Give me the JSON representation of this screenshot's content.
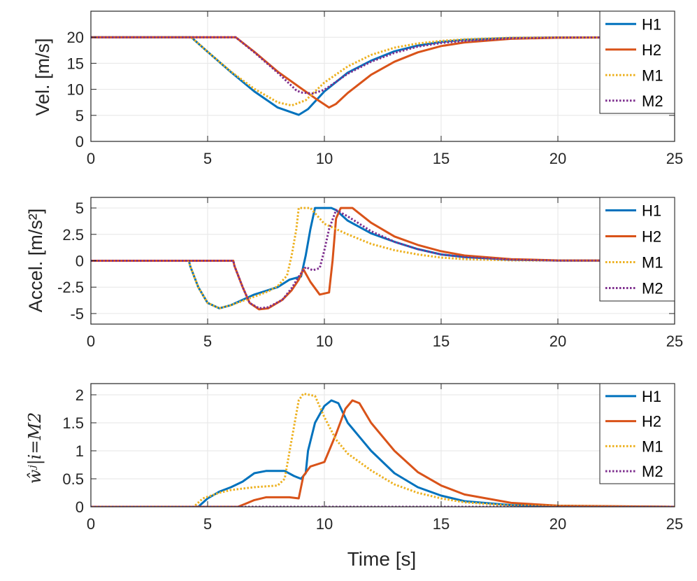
{
  "colors": {
    "H1": "#0072BD",
    "H2": "#D95319",
    "M1": "#EDB120",
    "M2": "#7E2F8E",
    "grid": "#e6e6e6",
    "axis": "#262626"
  },
  "xlabel": "Time [s]",
  "chart_data": [
    {
      "type": "line",
      "title": "",
      "xlabel": "",
      "ylabel": "Vel. [m/s]",
      "xlim": [
        0,
        25
      ],
      "ylim": [
        0,
        25
      ],
      "xticks": [
        0,
        5,
        10,
        15,
        20,
        25
      ],
      "yticks": [
        0,
        5,
        10,
        15,
        20
      ],
      "ytick_labels": [
        "0",
        "5",
        "10",
        "15",
        "20"
      ],
      "legend": [
        "H1",
        "H2",
        "M1",
        "M2"
      ],
      "series": [
        {
          "name": "H1",
          "style": "solid",
          "points": [
            [
              0,
              20
            ],
            [
              4.3,
              20
            ],
            [
              5,
              17.2
            ],
            [
              6,
              13.3
            ],
            [
              7,
              9.6
            ],
            [
              8,
              6.5
            ],
            [
              8.9,
              5.1
            ],
            [
              9.3,
              6.2
            ],
            [
              10,
              9.6
            ],
            [
              11,
              13.2
            ],
            [
              12,
              15.5
            ],
            [
              13,
              17.3
            ],
            [
              14,
              18.4
            ],
            [
              15,
              19.1
            ],
            [
              16,
              19.5
            ],
            [
              18,
              19.85
            ],
            [
              20,
              19.95
            ],
            [
              25,
              20
            ]
          ]
        },
        {
          "name": "H2",
          "style": "solid",
          "points": [
            [
              0,
              20
            ],
            [
              6.2,
              20
            ],
            [
              7,
              17.2
            ],
            [
              8,
              13.4
            ],
            [
              9,
              10.2
            ],
            [
              9.6,
              8.3
            ],
            [
              10.2,
              6.5
            ],
            [
              10.5,
              7.2
            ],
            [
              11,
              9.3
            ],
            [
              12,
              12.8
            ],
            [
              13,
              15.3
            ],
            [
              14,
              17.1
            ],
            [
              15,
              18.3
            ],
            [
              16,
              19
            ],
            [
              18,
              19.7
            ],
            [
              20,
              19.9
            ],
            [
              25,
              20
            ]
          ]
        },
        {
          "name": "M1",
          "style": "dotted",
          "points": [
            [
              0,
              20
            ],
            [
              4.3,
              20
            ],
            [
              5,
              17.2
            ],
            [
              6,
              13.4
            ],
            [
              7,
              10.1
            ],
            [
              8,
              7.5
            ],
            [
              8.6,
              6.9
            ],
            [
              9.2,
              7.9
            ],
            [
              10,
              11.3
            ],
            [
              11,
              14.4
            ],
            [
              12,
              16.6
            ],
            [
              13,
              18
            ],
            [
              14,
              18.8
            ],
            [
              15,
              19.3
            ],
            [
              16,
              19.6
            ],
            [
              18,
              19.9
            ],
            [
              20,
              19.97
            ],
            [
              25,
              20
            ]
          ]
        },
        {
          "name": "M2",
          "style": "dotted",
          "points": [
            [
              0,
              20
            ],
            [
              6.2,
              20
            ],
            [
              7,
              17.1
            ],
            [
              8,
              13.2
            ],
            [
              8.8,
              9.8
            ],
            [
              9,
              9.4
            ],
            [
              9.5,
              9.2
            ],
            [
              10,
              9.9
            ],
            [
              11,
              13
            ],
            [
              12,
              15.3
            ],
            [
              13,
              17
            ],
            [
              14,
              18.2
            ],
            [
              15,
              18.9
            ],
            [
              16,
              19.3
            ],
            [
              18,
              19.8
            ],
            [
              20,
              19.95
            ],
            [
              25,
              20
            ]
          ]
        }
      ]
    },
    {
      "type": "line",
      "title": "",
      "xlabel": "",
      "ylabel": "Accel. [m/s²]",
      "xlim": [
        0,
        25
      ],
      "ylim": [
        -6,
        6
      ],
      "xticks": [
        0,
        5,
        10,
        15,
        20,
        25
      ],
      "yticks": [
        -5,
        -2.5,
        0,
        2.5,
        5
      ],
      "ytick_labels": [
        "-5",
        "-2.5",
        "0",
        "2.5",
        "5"
      ],
      "legend": [
        "H1",
        "H2",
        "M1",
        "M2"
      ],
      "series": [
        {
          "name": "H1",
          "style": "solid",
          "points": [
            [
              0,
              0
            ],
            [
              4.2,
              0
            ],
            [
              4.25,
              -0.5
            ],
            [
              4.6,
              -2.5
            ],
            [
              5,
              -4
            ],
            [
              5.5,
              -4.5
            ],
            [
              6,
              -4.2
            ],
            [
              7,
              -3.2
            ],
            [
              8,
              -2.5
            ],
            [
              8.5,
              -1.8
            ],
            [
              9,
              -1.5
            ],
            [
              9.2,
              0.5
            ],
            [
              9.4,
              3
            ],
            [
              9.6,
              5
            ],
            [
              10.3,
              5
            ],
            [
              10.5,
              4.8
            ],
            [
              11,
              3.8
            ],
            [
              12,
              2.6
            ],
            [
              13,
              1.8
            ],
            [
              14,
              1.1
            ],
            [
              15,
              0.6
            ],
            [
              16,
              0.35
            ],
            [
              18,
              0.1
            ],
            [
              20,
              0.02
            ],
            [
              25,
              0
            ]
          ]
        },
        {
          "name": "H2",
          "style": "solid",
          "points": [
            [
              0,
              0
            ],
            [
              6.1,
              0
            ],
            [
              6.15,
              -0.5
            ],
            [
              6.5,
              -2.5
            ],
            [
              6.8,
              -4
            ],
            [
              7.2,
              -4.6
            ],
            [
              7.6,
              -4.5
            ],
            [
              8.2,
              -3.7
            ],
            [
              8.6,
              -2.8
            ],
            [
              8.9,
              -1.8
            ],
            [
              9.1,
              -0.8
            ],
            [
              9.4,
              -2
            ],
            [
              9.8,
              -3.2
            ],
            [
              10.2,
              -3
            ],
            [
              10.35,
              0
            ],
            [
              10.5,
              4
            ],
            [
              10.7,
              5
            ],
            [
              11.2,
              5
            ],
            [
              12,
              3.6
            ],
            [
              13,
              2.3
            ],
            [
              14,
              1.5
            ],
            [
              15,
              0.9
            ],
            [
              16,
              0.5
            ],
            [
              18,
              0.15
            ],
            [
              20,
              0.03
            ],
            [
              25,
              0
            ]
          ]
        },
        {
          "name": "M1",
          "style": "dotted",
          "points": [
            [
              0,
              0
            ],
            [
              4.2,
              0
            ],
            [
              4.25,
              -0.5
            ],
            [
              4.6,
              -2.5
            ],
            [
              5,
              -4
            ],
            [
              5.5,
              -4.5
            ],
            [
              6,
              -4.2
            ],
            [
              7,
              -3.4
            ],
            [
              7.6,
              -2.9
            ],
            [
              8,
              -2.4
            ],
            [
              8.4,
              -1.4
            ],
            [
              8.6,
              0.5
            ],
            [
              8.8,
              3
            ],
            [
              8.9,
              5
            ],
            [
              9.4,
              5
            ],
            [
              9.6,
              4.5
            ],
            [
              10,
              3.5
            ],
            [
              11,
              2.5
            ],
            [
              12,
              1.6
            ],
            [
              13,
              1
            ],
            [
              14,
              0.6
            ],
            [
              15,
              0.3
            ],
            [
              16,
              0.15
            ],
            [
              18,
              0.03
            ],
            [
              25,
              0
            ]
          ]
        },
        {
          "name": "M2",
          "style": "dotted",
          "points": [
            [
              0,
              0
            ],
            [
              6.1,
              0
            ],
            [
              6.15,
              -0.5
            ],
            [
              6.5,
              -2.5
            ],
            [
              6.8,
              -4
            ],
            [
              7.2,
              -4.5
            ],
            [
              7.6,
              -4.4
            ],
            [
              8.2,
              -3.7
            ],
            [
              8.6,
              -2.6
            ],
            [
              8.9,
              -1.5
            ],
            [
              9.2,
              -0.6
            ],
            [
              9.5,
              -0.9
            ],
            [
              9.8,
              -0.7
            ],
            [
              10,
              1
            ],
            [
              10.2,
              3
            ],
            [
              10.5,
              4.8
            ],
            [
              11,
              4.2
            ],
            [
              12,
              2.8
            ],
            [
              13,
              1.8
            ],
            [
              14,
              1.1
            ],
            [
              15,
              0.6
            ],
            [
              16,
              0.35
            ],
            [
              18,
              0.1
            ],
            [
              20,
              0.02
            ],
            [
              25,
              0
            ]
          ]
        }
      ]
    },
    {
      "type": "line",
      "title": "",
      "xlabel": "Time [s]",
      "ylabel": "ŵʲ|i=M2",
      "xlim": [
        0,
        25
      ],
      "ylim": [
        0,
        2.2
      ],
      "xticks": [
        0,
        5,
        10,
        15,
        20,
        25
      ],
      "yticks": [
        0,
        0.5,
        1,
        1.5,
        2
      ],
      "ytick_labels": [
        "0",
        "0.5",
        "1",
        "1.5",
        "2"
      ],
      "legend": [
        "H1",
        "H2",
        "M1",
        "M2"
      ],
      "series": [
        {
          "name": "H1",
          "style": "solid",
          "points": [
            [
              0,
              0
            ],
            [
              4.6,
              0
            ],
            [
              5,
              0.15
            ],
            [
              5.5,
              0.27
            ],
            [
              6,
              0.35
            ],
            [
              6.5,
              0.45
            ],
            [
              7,
              0.6
            ],
            [
              7.5,
              0.64
            ],
            [
              8.3,
              0.64
            ],
            [
              8.7,
              0.55
            ],
            [
              9,
              0.5
            ],
            [
              9.2,
              0.6
            ],
            [
              9.3,
              1
            ],
            [
              9.6,
              1.5
            ],
            [
              10,
              1.8
            ],
            [
              10.3,
              1.9
            ],
            [
              10.6,
              1.85
            ],
            [
              11,
              1.5
            ],
            [
              12,
              1
            ],
            [
              13,
              0.6
            ],
            [
              14,
              0.35
            ],
            [
              15,
              0.2
            ],
            [
              16,
              0.1
            ],
            [
              18,
              0.03
            ],
            [
              20,
              0.01
            ],
            [
              25,
              0
            ]
          ]
        },
        {
          "name": "H2",
          "style": "solid",
          "points": [
            [
              0,
              0
            ],
            [
              6.3,
              0
            ],
            [
              6.6,
              0.05
            ],
            [
              7,
              0.12
            ],
            [
              7.5,
              0.17
            ],
            [
              8.5,
              0.17
            ],
            [
              8.9,
              0.15
            ],
            [
              9,
              0.35
            ],
            [
              9.1,
              0.55
            ],
            [
              9.4,
              0.72
            ],
            [
              10,
              0.8
            ],
            [
              10.5,
              1.3
            ],
            [
              10.9,
              1.75
            ],
            [
              11.2,
              1.9
            ],
            [
              11.5,
              1.85
            ],
            [
              12,
              1.5
            ],
            [
              13,
              1
            ],
            [
              14,
              0.62
            ],
            [
              15,
              0.38
            ],
            [
              16,
              0.22
            ],
            [
              18,
              0.07
            ],
            [
              20,
              0.02
            ],
            [
              25,
              0
            ]
          ]
        },
        {
          "name": "M1",
          "style": "dotted",
          "points": [
            [
              0,
              0
            ],
            [
              4.4,
              0
            ],
            [
              4.8,
              0.15
            ],
            [
              5.5,
              0.25
            ],
            [
              6,
              0.3
            ],
            [
              7,
              0.35
            ],
            [
              8,
              0.38
            ],
            [
              8.3,
              0.5
            ],
            [
              8.6,
              1.2
            ],
            [
              8.9,
              1.9
            ],
            [
              9.1,
              2.02
            ],
            [
              9.6,
              1.98
            ],
            [
              10,
              1.6
            ],
            [
              10.5,
              1.2
            ],
            [
              11,
              0.95
            ],
            [
              12,
              0.65
            ],
            [
              13,
              0.4
            ],
            [
              14,
              0.25
            ],
            [
              15,
              0.15
            ],
            [
              16,
              0.08
            ],
            [
              18,
              0.02
            ],
            [
              25,
              0
            ]
          ]
        },
        {
          "name": "M2",
          "style": "dotted",
          "points": [
            [
              0,
              0
            ],
            [
              25,
              0
            ]
          ]
        }
      ]
    }
  ]
}
